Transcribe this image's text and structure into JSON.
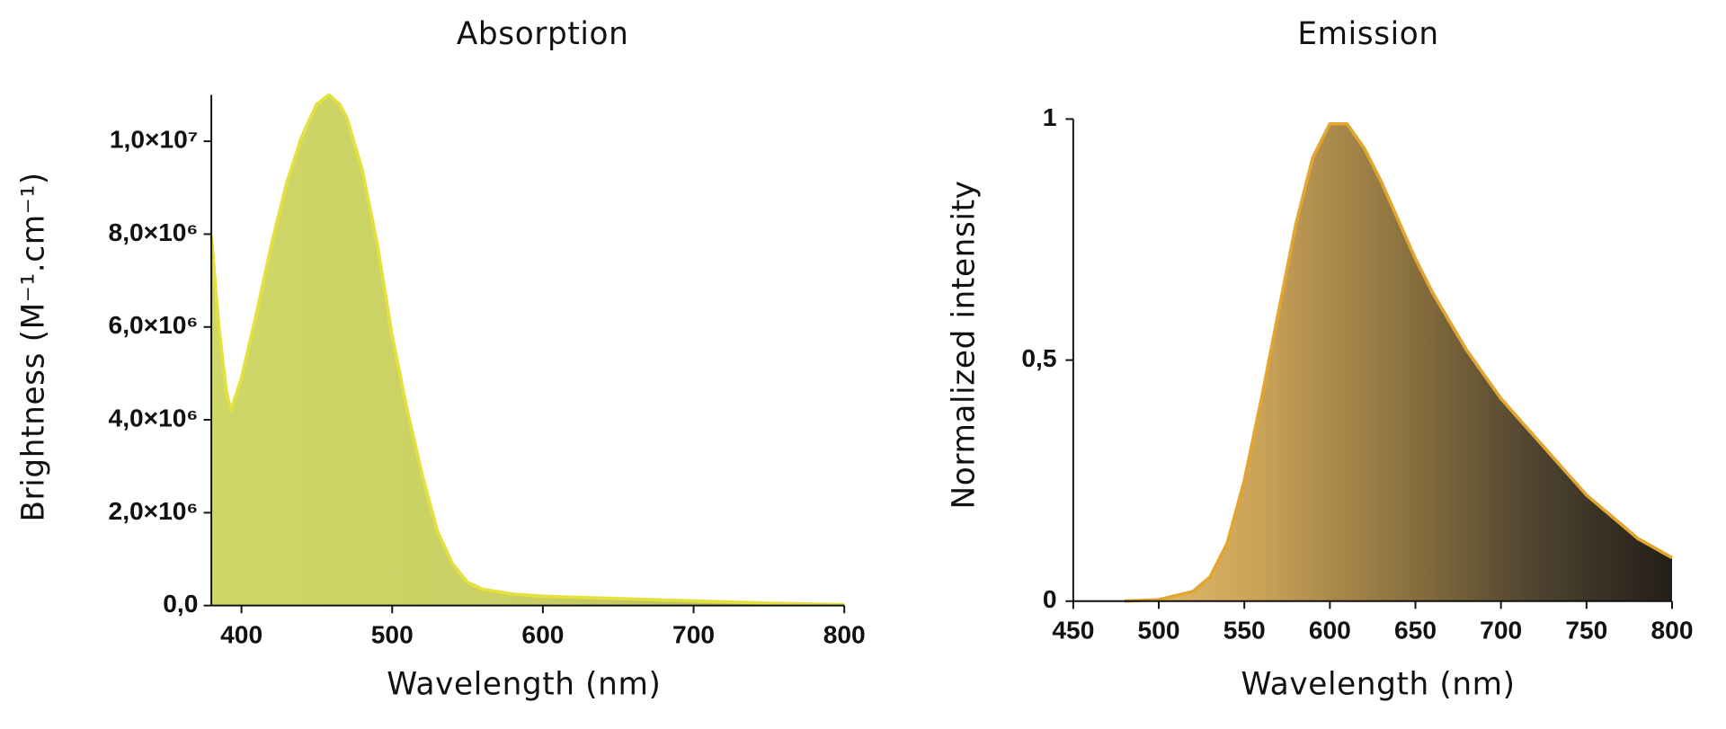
{
  "chart_data": [
    {
      "type": "area",
      "title": "Absorption",
      "x_label": "Wavelength (nm)",
      "y_label": "Brightness (M⁻¹.cm⁻¹)",
      "x": [
        380,
        385,
        390,
        393,
        400,
        410,
        420,
        430,
        440,
        450,
        458,
        465,
        470,
        480,
        490,
        500,
        510,
        520,
        530,
        540,
        550,
        560,
        580,
        600,
        650,
        700,
        750,
        800
      ],
      "values": [
        7960000,
        6000000,
        4600000,
        4200000,
        4900000,
        6300000,
        7800000,
        9100000,
        10100000,
        10800000,
        11000000,
        10800000,
        10500000,
        9400000,
        7800000,
        5800000,
        4200000,
        2800000,
        1600000,
        900000,
        500000,
        350000,
        250000,
        200000,
        150000,
        100000,
        50000,
        20000
      ],
      "color": "#e3e040",
      "fill_colors": [
        "#cfd768",
        "#c9cf62",
        "#b8bb58"
      ],
      "xlim": [
        380,
        800
      ],
      "ylim": [
        0,
        11000000
      ],
      "xticks": [
        400,
        500,
        600,
        700,
        800
      ],
      "yticks": [
        {
          "value": 0,
          "label": "0,0"
        },
        {
          "value": 2000000,
          "label": "2,0×10⁶"
        },
        {
          "value": 4000000,
          "label": "4,0×10⁶"
        },
        {
          "value": 6000000,
          "label": "6,0×10⁶"
        },
        {
          "value": 8000000,
          "label": "8,0×10⁶"
        },
        {
          "value": 10000000,
          "label": "1,0×10⁷"
        }
      ]
    },
    {
      "type": "area",
      "title": "Emission",
      "x_label": "Wavelength (nm)",
      "y_label": "Normalized intensity",
      "x": [
        480,
        500,
        520,
        530,
        540,
        550,
        560,
        570,
        580,
        590,
        600,
        610,
        620,
        630,
        640,
        650,
        660,
        670,
        680,
        690,
        700,
        710,
        720,
        730,
        740,
        750,
        760,
        770,
        780,
        790,
        800
      ],
      "values": [
        0,
        0.003,
        0.02,
        0.05,
        0.12,
        0.25,
        0.42,
        0.6,
        0.78,
        0.92,
        0.99,
        0.99,
        0.94,
        0.87,
        0.79,
        0.71,
        0.64,
        0.58,
        0.52,
        0.47,
        0.42,
        0.38,
        0.34,
        0.3,
        0.26,
        0.22,
        0.19,
        0.16,
        0.13,
        0.11,
        0.09
      ],
      "color": "#e2a530",
      "fill_colors": [
        "#e8bf6a",
        "#c9a258",
        "#8e7440",
        "#4f4430",
        "#231e18"
      ],
      "xlim": [
        450,
        800
      ],
      "ylim": [
        0,
        1
      ],
      "xticks": [
        450,
        500,
        550,
        600,
        650,
        700,
        750,
        800
      ],
      "yticks": [
        0,
        {
          "value": 0.5,
          "label": "0,5"
        },
        1
      ]
    }
  ]
}
